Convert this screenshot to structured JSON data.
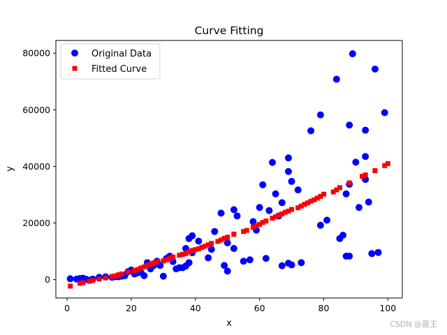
{
  "chart_data": {
    "type": "scatter",
    "title": "Curve Fitting",
    "xlabel": "x",
    "ylabel": "y",
    "xlim": [
      -3.5,
      104.5
    ],
    "ylim": [
      -6500,
      84500
    ],
    "xticks": [
      0,
      20,
      40,
      60,
      80,
      100
    ],
    "yticks": [
      0,
      20000,
      40000,
      60000,
      80000
    ],
    "grid": false,
    "legend_position": "top-left",
    "colors": {
      "original": "#0000ff",
      "fitted": "#ff0000"
    },
    "series": [
      {
        "name": "Original Data",
        "marker": "circle",
        "x": [
          1,
          3,
          4,
          5,
          6,
          7,
          8,
          10,
          12,
          14,
          15,
          16,
          17,
          18,
          19,
          20,
          21,
          22,
          23,
          24,
          25,
          26,
          27,
          28,
          29,
          30,
          31,
          32,
          33,
          34,
          35,
          36,
          37,
          37,
          38,
          38,
          39,
          39,
          41,
          44,
          45,
          46,
          48,
          49,
          50,
          50,
          52,
          52,
          53,
          55,
          57,
          58,
          59,
          60,
          61,
          62,
          63,
          64,
          65,
          66,
          67,
          67,
          69,
          69,
          69,
          70,
          70,
          72,
          73,
          76,
          79,
          79,
          81,
          84,
          85,
          86,
          87,
          87,
          88,
          88,
          88,
          89,
          90,
          91,
          93,
          93,
          93,
          94,
          95,
          96,
          97,
          99
        ],
        "y": [
          300,
          200,
          400,
          500,
          100,
          -200,
          200,
          800,
          1000,
          800,
          1000,
          1000,
          1200,
          1400,
          2800,
          3400,
          2000,
          2400,
          2600,
          1400,
          6000,
          3800,
          5000,
          6500,
          5000,
          1200,
          7500,
          8300,
          6400,
          3800,
          4200,
          4200,
          11000,
          4800,
          6000,
          14500,
          9500,
          15500,
          13600,
          7700,
          10700,
          17000,
          23500,
          5000,
          13000,
          3000,
          11000,
          24700,
          22500,
          6500,
          7000,
          20500,
          17500,
          25500,
          33500,
          7500,
          24400,
          41400,
          30300,
          22500,
          27200,
          4900,
          43000,
          38200,
          5800,
          34700,
          5200,
          31700,
          6000,
          52600,
          19200,
          58200,
          21000,
          70800,
          14500,
          15700,
          30300,
          8300,
          54600,
          8300,
          33700,
          79800,
          41500,
          25500,
          52800,
          35400,
          43500,
          27400,
          9200,
          74400,
          9600,
          59000
        ]
      },
      {
        "name": "Fitted Curve",
        "marker": "square",
        "x": [
          1,
          4,
          5,
          7,
          8,
          10,
          12,
          14,
          15,
          16,
          17,
          19,
          21,
          22,
          23,
          24,
          25,
          26,
          27,
          28,
          30,
          31,
          32,
          33,
          35,
          36,
          37,
          37,
          38,
          39,
          40,
          41,
          42,
          43,
          44,
          45,
          47,
          48,
          49,
          50,
          52,
          52,
          55,
          56,
          58,
          59,
          60,
          61,
          62,
          64,
          65,
          66,
          67,
          68,
          69,
          70,
          72,
          73,
          74,
          75,
          76,
          77,
          78,
          79,
          80,
          83,
          84,
          85,
          88,
          92,
          93,
          96,
          99,
          100
        ],
        "y": [
          -2300,
          -1300,
          -1100,
          -600,
          -300,
          200,
          600,
          1100,
          1300,
          1700,
          2000,
          2700,
          3200,
          3600,
          4100,
          4500,
          5000,
          5400,
          5900,
          6300,
          6600,
          7000,
          7500,
          8000,
          8600,
          8900,
          9200,
          9300,
          9800,
          10300,
          10600,
          10900,
          11400,
          11800,
          12300,
          12800,
          13500,
          14000,
          14600,
          15000,
          16000,
          16100,
          17000,
          17400,
          18500,
          19000,
          19500,
          20200,
          20700,
          21700,
          22200,
          22700,
          23200,
          23800,
          24200,
          24800,
          25400,
          26000,
          26600,
          27100,
          27700,
          28200,
          28800,
          29400,
          30200,
          31000,
          31700,
          32500,
          34200,
          36500,
          37000,
          38500,
          40300,
          41000
        ]
      }
    ]
  },
  "watermark": "CSDN @菌王"
}
